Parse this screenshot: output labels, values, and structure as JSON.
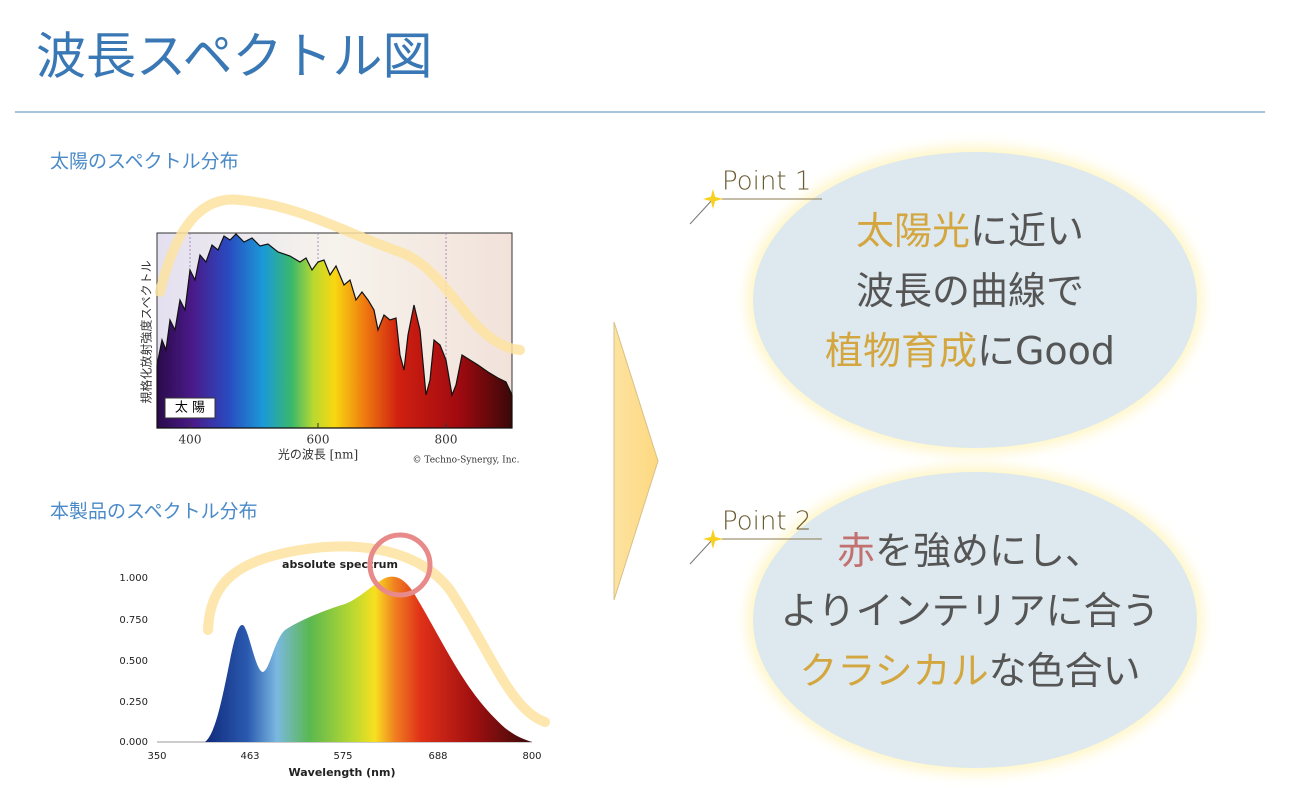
{
  "header": {
    "title": "波長スペクトル図"
  },
  "sun_chart": {
    "heading": "太陽のスペクトル分布",
    "y_label": "規格化放射強度スペクトル",
    "x_label": "光の波長 [nm]",
    "xticks": [
      "400",
      "600",
      "800"
    ],
    "legend": "太 陽",
    "credit": "© Techno-Synergy, Inc."
  },
  "product_chart": {
    "heading": "本製品のスペクトル分布",
    "title": "absolute spectrum",
    "x_label": "Wavelength (nm)",
    "xticks": [
      "350",
      "463",
      "575",
      "688",
      "800"
    ],
    "yticks": [
      "1.000",
      "0.750",
      "0.500",
      "0.250",
      "0.000"
    ]
  },
  "points": [
    {
      "label": "Point 1",
      "lines": [
        [
          {
            "text": "太陽光",
            "color": "#d4a640"
          },
          {
            "text": "に近い",
            "color": "#555555"
          }
        ],
        [
          {
            "text": "波長の曲線で",
            "color": "#555555"
          }
        ],
        [
          {
            "text": "植物育成",
            "color": "#d4a640"
          },
          {
            "text": "にGood",
            "color": "#555555"
          }
        ]
      ]
    },
    {
      "label": "Point 2",
      "lines": [
        [
          {
            "text": "赤",
            "color": "#c27070"
          },
          {
            "text": "を強めにし、",
            "color": "#555555"
          }
        ],
        [
          {
            "text": "よりインテリアに合う",
            "color": "#555555"
          }
        ],
        [
          {
            "text": "クラシカル",
            "color": "#d4a640"
          },
          {
            "text": "な色合い",
            "color": "#555555"
          }
        ]
      ]
    }
  ]
}
